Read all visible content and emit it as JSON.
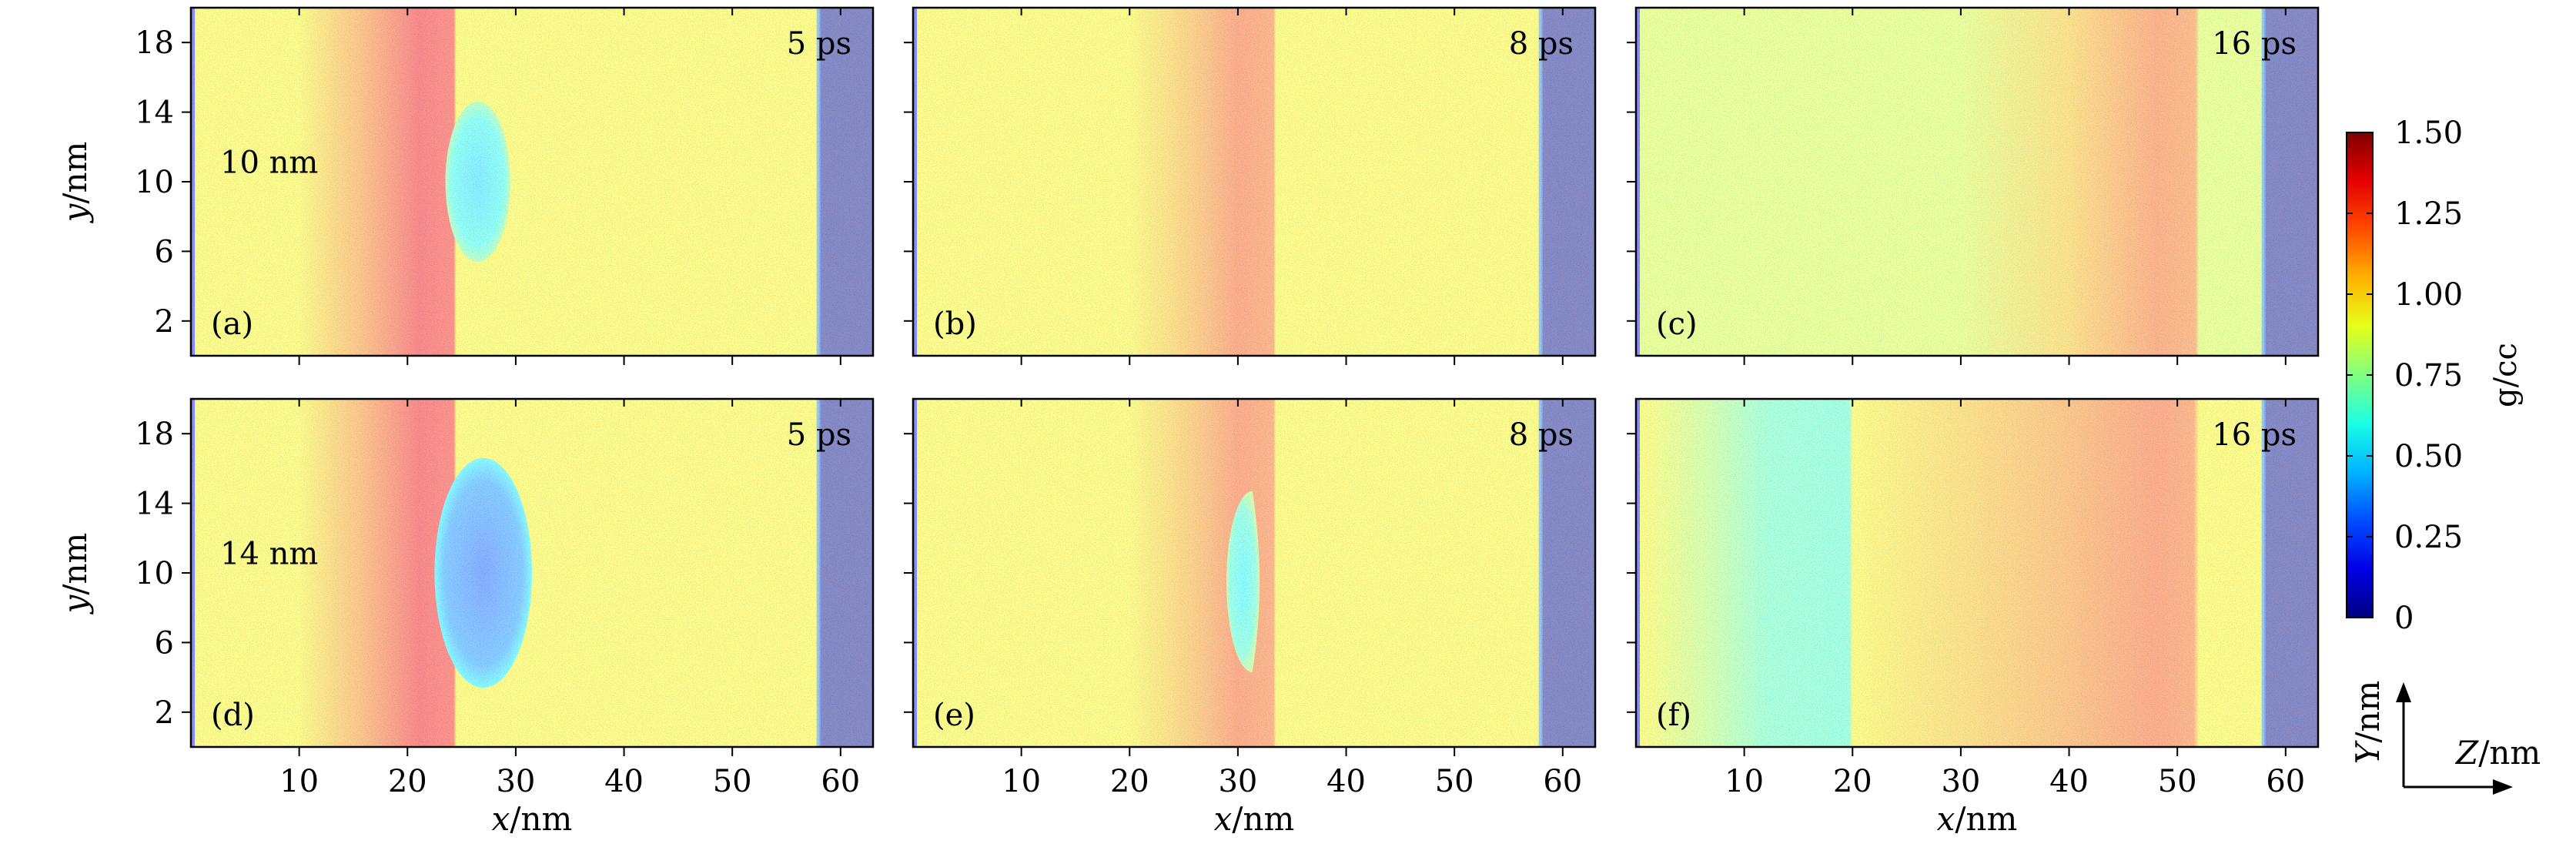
{
  "chart_data": {
    "type": "heatmap",
    "colorbar": {
      "label": "g/cc",
      "range": [
        0,
        1.5
      ],
      "ticks": [
        0,
        0.25,
        0.5,
        0.75,
        1.0,
        1.25,
        1.5
      ],
      "tick_labels": [
        "0",
        "0.25",
        "0.50",
        "0.75",
        "1.00",
        "1.25",
        "1.50"
      ],
      "colormap": "jet"
    },
    "axes": {
      "xlabel": "x/nm",
      "ylabel": "y/nm",
      "xlim": [
        0,
        63
      ],
      "ylim": [
        0,
        20
      ],
      "xticks": [
        10,
        20,
        30,
        40,
        50,
        60
      ],
      "yticks": [
        2,
        6,
        10,
        14,
        18
      ]
    },
    "inset_axes": {
      "vertical": "Y/nm",
      "horizontal": "Z/nm"
    },
    "panels": [
      {
        "label": "(a)",
        "time": "5 ps",
        "size_label": "10 nm",
        "background_density": 0.95,
        "rim_density": 0.0,
        "rim_x": [
          58,
          63
        ],
        "bands": [
          {
            "x_start": 10,
            "x_end": 24.5,
            "peak_x": 21,
            "peak_density": 1.32
          }
        ],
        "bubble": {
          "cx": 26.5,
          "cy": 10,
          "rx": 3.0,
          "ry": 4.6,
          "density": 0.5
        }
      },
      {
        "label": "(b)",
        "time": "8 ps",
        "size_label": "",
        "background_density": 0.95,
        "rim_density": 0.0,
        "rim_x": [
          58,
          63
        ],
        "bands": [
          {
            "x_start": 20,
            "x_end": 33.5,
            "peak_x": 30,
            "peak_density": 1.2
          }
        ],
        "bubble": null
      },
      {
        "label": "(c)",
        "time": "16 ps",
        "size_label": "",
        "background_density": 0.88,
        "rim_density": 0.0,
        "rim_x": [
          58,
          63
        ],
        "bands": [
          {
            "x_start": 30,
            "x_end": 52,
            "peak_x": 48,
            "peak_density": 1.18
          }
        ],
        "bubble": null
      },
      {
        "label": "(d)",
        "time": "5 ps",
        "size_label": "14 nm",
        "background_density": 0.95,
        "rim_density": 0.0,
        "rim_x": [
          58,
          63
        ],
        "bands": [
          {
            "x_start": 10,
            "x_end": 24.5,
            "peak_x": 21,
            "peak_density": 1.32
          }
        ],
        "bubble": {
          "cx": 27,
          "cy": 10,
          "rx": 4.5,
          "ry": 6.6,
          "density": 0.3
        }
      },
      {
        "label": "(e)",
        "time": "8 ps",
        "size_label": "",
        "background_density": 0.95,
        "rim_density": 0.0,
        "rim_x": [
          58,
          63
        ],
        "bands": [
          {
            "x_start": 20,
            "x_end": 33.5,
            "peak_x": 30,
            "peak_density": 1.2
          }
        ],
        "bubble": {
          "cx": 30.5,
          "cy": 9.5,
          "rx": 2.4,
          "ry": 5.2,
          "density": 0.55,
          "half": "left"
        }
      },
      {
        "label": "(f)",
        "time": "16 ps",
        "size_label": "",
        "background_density": 0.95,
        "rim_density": 0.0,
        "rim_x": [
          58,
          63
        ],
        "bands": [
          {
            "x_start": 0.5,
            "x_end": 20,
            "peak_x": 12,
            "peak_density": 0.68
          },
          {
            "x_start": 20,
            "x_end": 52,
            "peak_x": 48,
            "peak_density": 1.2
          }
        ],
        "bubble": null
      }
    ]
  }
}
